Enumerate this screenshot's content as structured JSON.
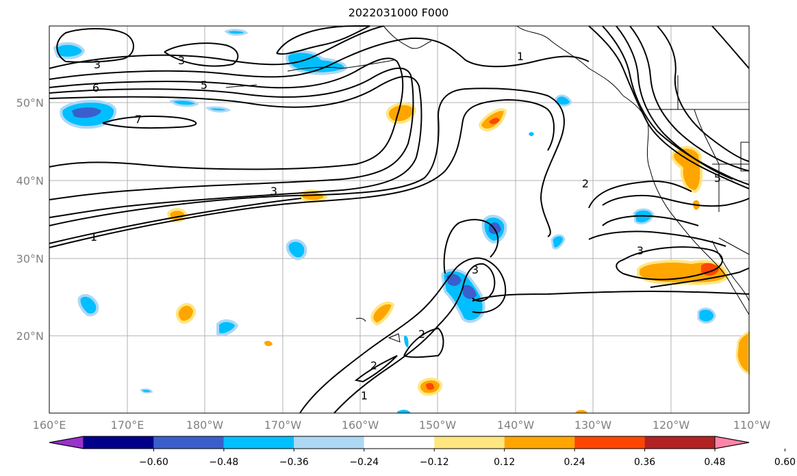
{
  "title": "2022031000 F000",
  "map": {
    "lon_ticks": [
      "160°E",
      "170°E",
      "180°W",
      "170°W",
      "160°W",
      "150°W",
      "140°W",
      "130°W",
      "120°W",
      "110°W"
    ],
    "lat_ticks": [
      "50°N",
      "40°N",
      "30°N",
      "20°N"
    ],
    "contour_labels": [
      "3",
      "3",
      "6",
      "5",
      "7",
      "1",
      "3",
      "1",
      "2",
      "5",
      "3",
      "3",
      "2",
      "2",
      "1"
    ],
    "grid": true
  },
  "colorbar": {
    "ticks": [
      "−0.60",
      "−0.48",
      "−0.36",
      "−0.24",
      "−0.12",
      "0.12",
      "0.24",
      "0.36",
      "0.48",
      "0.60"
    ],
    "colors": [
      "#9932CC",
      "#00008B",
      "#3A5FCD",
      "#00BFFF",
      "#ADD8F5",
      "#FFFFFF",
      "#FFE680",
      "#FFA500",
      "#FF4500",
      "#B22222",
      "#FF85A8"
    ]
  },
  "colors": {
    "positive": "#FFA500",
    "positive_light": "#FFE680",
    "negative": "#00BFFF",
    "negative_light": "#ADD8F5",
    "negative_strong": "#3A5FCD",
    "grid": "#B0B0B0"
  }
}
